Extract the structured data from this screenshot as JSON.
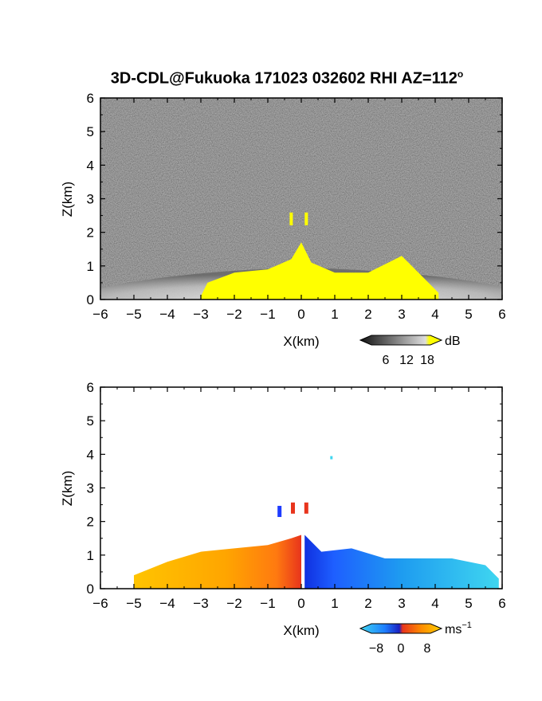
{
  "title": {
    "main": "3D-CDL@Fukuoka 171023 032602 RHI AZ=112",
    "superscript": "o"
  },
  "colors": {
    "reflectivity_strong": "#ffff00",
    "background_noise": "#2b2b2b",
    "velocity_negative": "#1e90ff",
    "velocity_positive": "#ffb000",
    "velocity_zero": "#e8341c"
  },
  "chart_data": [
    {
      "type": "heatmap",
      "panel": "reflectivity",
      "title": "3D-CDL@Fukuoka 171023 032602 RHI AZ=112o",
      "xlabel": "X(km)",
      "ylabel": "Z(km)",
      "xlim": [
        -6,
        6
      ],
      "ylim": [
        0,
        6
      ],
      "x_ticks": [
        -6,
        -5,
        -4,
        -3,
        -2,
        -1,
        0,
        1,
        2,
        3,
        4,
        5,
        6
      ],
      "y_ticks": [
        0,
        1,
        2,
        3,
        4,
        5,
        6
      ],
      "colorbar": {
        "unit": "dB",
        "ticks": [
          6,
          12,
          18
        ]
      },
      "strong_echo_top_km": [
        {
          "x": -3.0,
          "z": 0.1
        },
        {
          "x": -2.8,
          "z": 0.5
        },
        {
          "x": -2.0,
          "z": 0.8
        },
        {
          "x": -1.0,
          "z": 0.9
        },
        {
          "x": -0.3,
          "z": 1.2
        },
        {
          "x": 0.0,
          "z": 1.7
        },
        {
          "x": 0.3,
          "z": 1.1
        },
        {
          "x": 1.0,
          "z": 0.8
        },
        {
          "x": 2.0,
          "z": 0.8
        },
        {
          "x": 3.0,
          "z": 1.3
        },
        {
          "x": 3.5,
          "z": 0.8
        },
        {
          "x": 4.1,
          "z": 0.2
        }
      ],
      "isolated_echoes_km": [
        {
          "x": -0.3,
          "z": 2.4
        },
        {
          "x": 0.15,
          "z": 2.4
        }
      ]
    },
    {
      "type": "heatmap",
      "panel": "doppler_velocity",
      "xlabel": "X(km)",
      "ylabel": "Z(km)",
      "xlim": [
        -6,
        6
      ],
      "ylim": [
        0,
        6
      ],
      "x_ticks": [
        -6,
        -5,
        -4,
        -3,
        -2,
        -1,
        0,
        1,
        2,
        3,
        4,
        5,
        6
      ],
      "y_ticks": [
        0,
        1,
        2,
        3,
        4,
        5,
        6
      ],
      "colorbar": {
        "unit": "ms",
        "unit_exponent": "−1",
        "ticks": [
          "−8",
          "0",
          "8"
        ]
      },
      "positive_region_top_km": [
        {
          "x": -5.0,
          "z": 0.4
        },
        {
          "x": -4.0,
          "z": 0.8
        },
        {
          "x": -3.0,
          "z": 1.1
        },
        {
          "x": -2.0,
          "z": 1.2
        },
        {
          "x": -1.0,
          "z": 1.3
        },
        {
          "x": -0.3,
          "z": 1.5
        },
        {
          "x": 0.0,
          "z": 1.6
        }
      ],
      "negative_region_top_km": [
        {
          "x": 0.1,
          "z": 1.6
        },
        {
          "x": 0.6,
          "z": 1.1
        },
        {
          "x": 1.5,
          "z": 1.2
        },
        {
          "x": 2.5,
          "z": 0.9
        },
        {
          "x": 3.5,
          "z": 0.9
        },
        {
          "x": 4.5,
          "z": 0.9
        },
        {
          "x": 5.5,
          "z": 0.7
        },
        {
          "x": 5.9,
          "z": 0.3
        }
      ],
      "isolated_echoes_km": [
        {
          "x": -0.65,
          "z": 2.3
        },
        {
          "x": -0.25,
          "z": 2.4
        },
        {
          "x": 0.15,
          "z": 2.4
        },
        {
          "x": 0.9,
          "z": 3.9
        }
      ]
    }
  ]
}
